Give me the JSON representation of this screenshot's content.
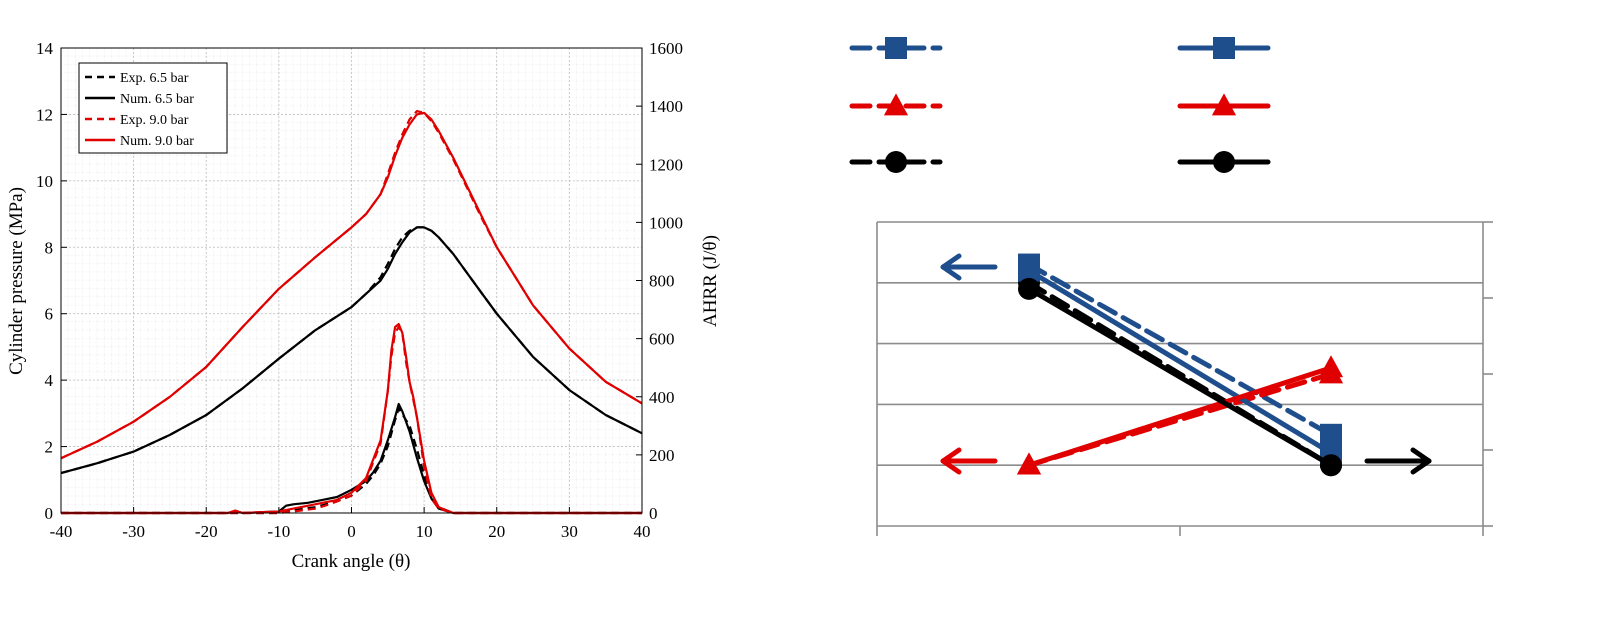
{
  "chart_data": [
    {
      "type": "line",
      "title": "",
      "xlabel": "Crank angle (θ)",
      "ylabel": "Cylinder pressure (MPa)",
      "y2label": "AHRR (J/θ)",
      "xlim": [
        -40,
        40
      ],
      "ylim": [
        0,
        14
      ],
      "y2lim": [
        0,
        1600
      ],
      "xticks": [
        -40,
        -30,
        -20,
        -10,
        0,
        10,
        20,
        30,
        40
      ],
      "yticks": [
        0,
        2,
        4,
        6,
        8,
        10,
        12,
        14
      ],
      "y2ticks": [
        0,
        200,
        400,
        600,
        800,
        1000,
        1200,
        1400,
        1600
      ],
      "grid": "minor",
      "legend": {
        "position": "top-left",
        "entries": [
          "Exp. 6.5 bar",
          "Num. 6.5 bar",
          "Exp. 9.0 bar",
          "Num. 9.0 bar"
        ]
      },
      "series": [
        {
          "name": "Exp. 6.5 bar",
          "axis": "left",
          "color": "#000000",
          "dash": true,
          "x": [
            -40,
            -35,
            -30,
            -25,
            -20,
            -15,
            -10,
            -5,
            0,
            2,
            4,
            5,
            6,
            7,
            8,
            9,
            10,
            11,
            12,
            14,
            16,
            18,
            20,
            25,
            30,
            35,
            40
          ],
          "y": [
            1.2,
            1.5,
            1.85,
            2.35,
            2.95,
            3.75,
            4.65,
            5.5,
            6.2,
            6.6,
            7.1,
            7.5,
            7.95,
            8.3,
            8.5,
            8.6,
            8.6,
            8.5,
            8.3,
            7.8,
            7.2,
            6.6,
            6.0,
            4.7,
            3.7,
            2.95,
            2.4
          ]
        },
        {
          "name": "Num. 6.5 bar",
          "axis": "left",
          "color": "#000000",
          "dash": false,
          "x": [
            -40,
            -35,
            -30,
            -25,
            -20,
            -15,
            -10,
            -5,
            0,
            2,
            4,
            5,
            6,
            7,
            8,
            9,
            10,
            11,
            12,
            14,
            16,
            18,
            20,
            25,
            30,
            35,
            40
          ],
          "y": [
            1.2,
            1.5,
            1.85,
            2.35,
            2.95,
            3.75,
            4.65,
            5.5,
            6.2,
            6.6,
            7.0,
            7.35,
            7.8,
            8.15,
            8.45,
            8.6,
            8.6,
            8.5,
            8.3,
            7.8,
            7.2,
            6.6,
            6.0,
            4.7,
            3.7,
            2.95,
            2.4
          ]
        },
        {
          "name": "Exp. 9.0 bar",
          "axis": "left",
          "color": "#e00000",
          "dash": true,
          "x": [
            -40,
            -35,
            -30,
            -25,
            -20,
            -15,
            -10,
            -5,
            0,
            2,
            4,
            5,
            6,
            7,
            8,
            9,
            10,
            11,
            12,
            14,
            16,
            18,
            20,
            25,
            30,
            35,
            40
          ],
          "y": [
            1.65,
            2.15,
            2.75,
            3.5,
            4.4,
            5.6,
            6.75,
            7.7,
            8.6,
            9.0,
            9.6,
            10.2,
            10.85,
            11.4,
            11.85,
            12.1,
            12.05,
            11.8,
            11.45,
            10.65,
            9.75,
            8.85,
            8.0,
            6.25,
            4.95,
            3.95,
            3.3
          ]
        },
        {
          "name": "Num. 9.0 bar",
          "axis": "left",
          "color": "#e00000",
          "dash": false,
          "x": [
            -40,
            -35,
            -30,
            -25,
            -20,
            -15,
            -10,
            -5,
            0,
            2,
            4,
            5,
            6,
            7,
            8,
            9,
            10,
            11,
            12,
            14,
            16,
            18,
            20,
            25,
            30,
            35,
            40
          ],
          "y": [
            1.65,
            2.15,
            2.75,
            3.5,
            4.4,
            5.6,
            6.75,
            7.7,
            8.6,
            9.0,
            9.6,
            10.1,
            10.75,
            11.3,
            11.7,
            12.0,
            12.05,
            11.85,
            11.5,
            10.7,
            9.8,
            8.9,
            8.0,
            6.25,
            4.95,
            3.95,
            3.3
          ]
        },
        {
          "name": "Exp. 6.5 bar",
          "axis": "right",
          "color": "#000000",
          "dash": true,
          "x": [
            -40,
            -20,
            -10,
            -8,
            -5,
            -2,
            0,
            2,
            3,
            4,
            5,
            6,
            6.5,
            7,
            8,
            9,
            10,
            11,
            12,
            14,
            40
          ],
          "y": [
            0,
            0,
            0,
            10,
            20,
            40,
            60,
            100,
            130,
            170,
            230,
            320,
            360,
            340,
            300,
            220,
            130,
            60,
            20,
            0,
            0
          ]
        },
        {
          "name": "Num. 6.5 bar",
          "axis": "right",
          "color": "#000000",
          "dash": false,
          "x": [
            -40,
            -17,
            -16,
            -15,
            -10,
            -9,
            -8,
            -6,
            -4,
            -2,
            0,
            2,
            3,
            4,
            5,
            6,
            6.5,
            7,
            8,
            9,
            10,
            11,
            12,
            14,
            40
          ],
          "y": [
            0,
            0,
            8,
            0,
            5,
            25,
            30,
            35,
            45,
            55,
            80,
            110,
            140,
            180,
            250,
            330,
            375,
            350,
            280,
            190,
            110,
            50,
            15,
            0,
            0
          ]
        },
        {
          "name": "Exp. 9.0 bar",
          "axis": "right",
          "color": "#e00000",
          "dash": true,
          "x": [
            -40,
            -10,
            -8,
            -5,
            -3,
            0,
            2,
            4,
            5,
            5.5,
            6,
            6.5,
            7,
            7.5,
            8,
            9,
            10,
            11,
            12,
            14,
            40
          ],
          "y": [
            0,
            0,
            5,
            15,
            30,
            60,
            110,
            240,
            420,
            540,
            620,
            640,
            620,
            520,
            450,
            330,
            160,
            50,
            15,
            0,
            0
          ]
        },
        {
          "name": "Num. 9.0 bar",
          "axis": "right",
          "color": "#e00000",
          "dash": false,
          "x": [
            -40,
            -17,
            -16,
            -15,
            -10,
            -8,
            -5,
            -2,
            0,
            2,
            4,
            5,
            5.5,
            6,
            6.5,
            7,
            7.5,
            8,
            8.5,
            9,
            10,
            11,
            12,
            14,
            40
          ],
          "y": [
            0,
            0,
            8,
            0,
            5,
            15,
            30,
            45,
            70,
            120,
            250,
            420,
            560,
            640,
            650,
            620,
            540,
            450,
            400,
            330,
            180,
            70,
            20,
            0,
            0
          ]
        }
      ]
    },
    {
      "type": "line",
      "title": "",
      "xlabel": "",
      "ylabel": "",
      "categories": [
        "",
        ""
      ],
      "ylim": [
        0,
        5
      ],
      "grid": "horizontal",
      "legend": {
        "position": "top",
        "entries": [
          "",
          "",
          "",
          "",
          "",
          ""
        ]
      },
      "series": [
        {
          "axis": "left",
          "color": "#1f4e8c",
          "dash": true,
          "marker": "square",
          "values": [
            4.3,
            1.5
          ]
        },
        {
          "axis": "left",
          "color": "#e00000",
          "dash": true,
          "marker": "triangle",
          "values": [
            1.0,
            2.5
          ]
        },
        {
          "axis": "left",
          "color": "#000000",
          "dash": true,
          "marker": "circle",
          "values": [
            4.0,
            1.0
          ]
        },
        {
          "axis": "left",
          "color": "#1f4e8c",
          "dash": false,
          "marker": "square",
          "values": [
            4.2,
            1.2
          ]
        },
        {
          "axis": "left",
          "color": "#e00000",
          "dash": false,
          "marker": "triangle",
          "values": [
            1.0,
            2.6
          ]
        },
        {
          "axis": "left",
          "color": "#000000",
          "dash": false,
          "marker": "circle",
          "values": [
            3.9,
            1.0
          ]
        }
      ],
      "annotations": [
        {
          "shape": "arrow-left",
          "color": "#1f4e8c"
        },
        {
          "shape": "arrow-left",
          "color": "#e00000"
        },
        {
          "shape": "arrow-right",
          "color": "#000000"
        }
      ]
    }
  ]
}
